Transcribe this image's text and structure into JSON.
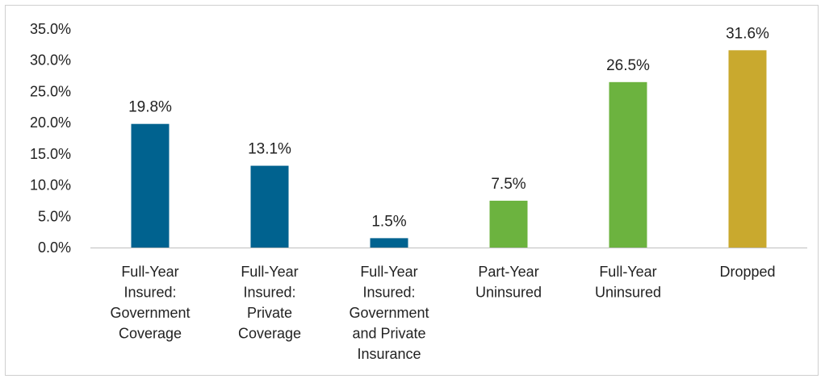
{
  "chart_data": {
    "type": "bar",
    "title": "",
    "xlabel": "",
    "ylabel": "",
    "ylim": [
      0,
      35
    ],
    "y_ticks": [
      "0.0%",
      "5.0%",
      "10.0%",
      "15.0%",
      "20.0%",
      "25.0%",
      "30.0%",
      "35.0%"
    ],
    "grid": false,
    "categories": [
      [
        "Full-Year",
        "Insured:",
        "Government",
        "Coverage"
      ],
      [
        "Full-Year",
        "Insured:",
        "Private",
        "Coverage"
      ],
      [
        "Full-Year",
        "Insured:",
        "Government",
        "and Private",
        "Insurance"
      ],
      [
        "Part-Year",
        "Uninsured"
      ],
      [
        "Full-Year",
        "Uninsured"
      ],
      [
        "Dropped"
      ]
    ],
    "values": [
      19.8,
      13.1,
      1.5,
      7.5,
      26.5,
      31.6
    ],
    "value_labels": [
      "19.8%",
      "13.1%",
      "1.5%",
      "7.5%",
      "26.5%",
      "31.6%"
    ],
    "colors": [
      "#00628f",
      "#00628f",
      "#00628f",
      "#6cb33f",
      "#6cb33f",
      "#c9a92e"
    ]
  }
}
